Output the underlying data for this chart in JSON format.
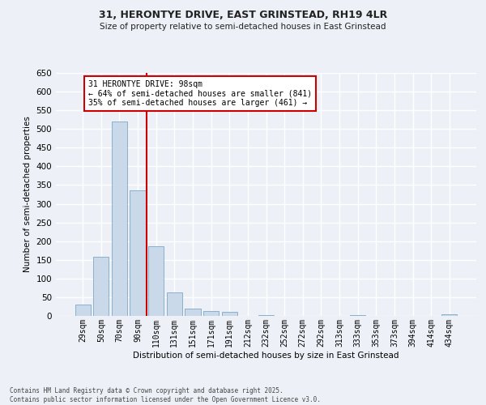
{
  "title1": "31, HERONTYE DRIVE, EAST GRINSTEAD, RH19 4LR",
  "title2": "Size of property relative to semi-detached houses in East Grinstead",
  "xlabel": "Distribution of semi-detached houses by size in East Grinstead",
  "ylabel": "Number of semi-detached properties",
  "bar_color": "#c9d9ea",
  "bar_edge_color": "#8ab0cc",
  "background_color": "#edf1f7",
  "grid_color": "#ffffff",
  "categories": [
    "29sqm",
    "50sqm",
    "70sqm",
    "90sqm",
    "110sqm",
    "131sqm",
    "151sqm",
    "171sqm",
    "191sqm",
    "212sqm",
    "232sqm",
    "252sqm",
    "272sqm",
    "292sqm",
    "313sqm",
    "333sqm",
    "353sqm",
    "373sqm",
    "394sqm",
    "414sqm",
    "434sqm"
  ],
  "values": [
    30,
    158,
    520,
    335,
    187,
    62,
    20,
    13,
    10,
    1,
    3,
    0,
    0,
    0,
    0,
    2,
    0,
    0,
    0,
    0,
    5
  ],
  "vline_index": 3.5,
  "vline_color": "#cc0000",
  "annotation_text": "31 HERONTYE DRIVE: 98sqm\n← 64% of semi-detached houses are smaller (841)\n35% of semi-detached houses are larger (461) →",
  "annotation_box_color": "#ffffff",
  "annotation_box_edge_color": "#cc0000",
  "ylim": [
    0,
    650
  ],
  "yticks": [
    0,
    50,
    100,
    150,
    200,
    250,
    300,
    350,
    400,
    450,
    500,
    550,
    600,
    650
  ],
  "footer1": "Contains HM Land Registry data © Crown copyright and database right 2025.",
  "footer2": "Contains public sector information licensed under the Open Government Licence v3.0."
}
